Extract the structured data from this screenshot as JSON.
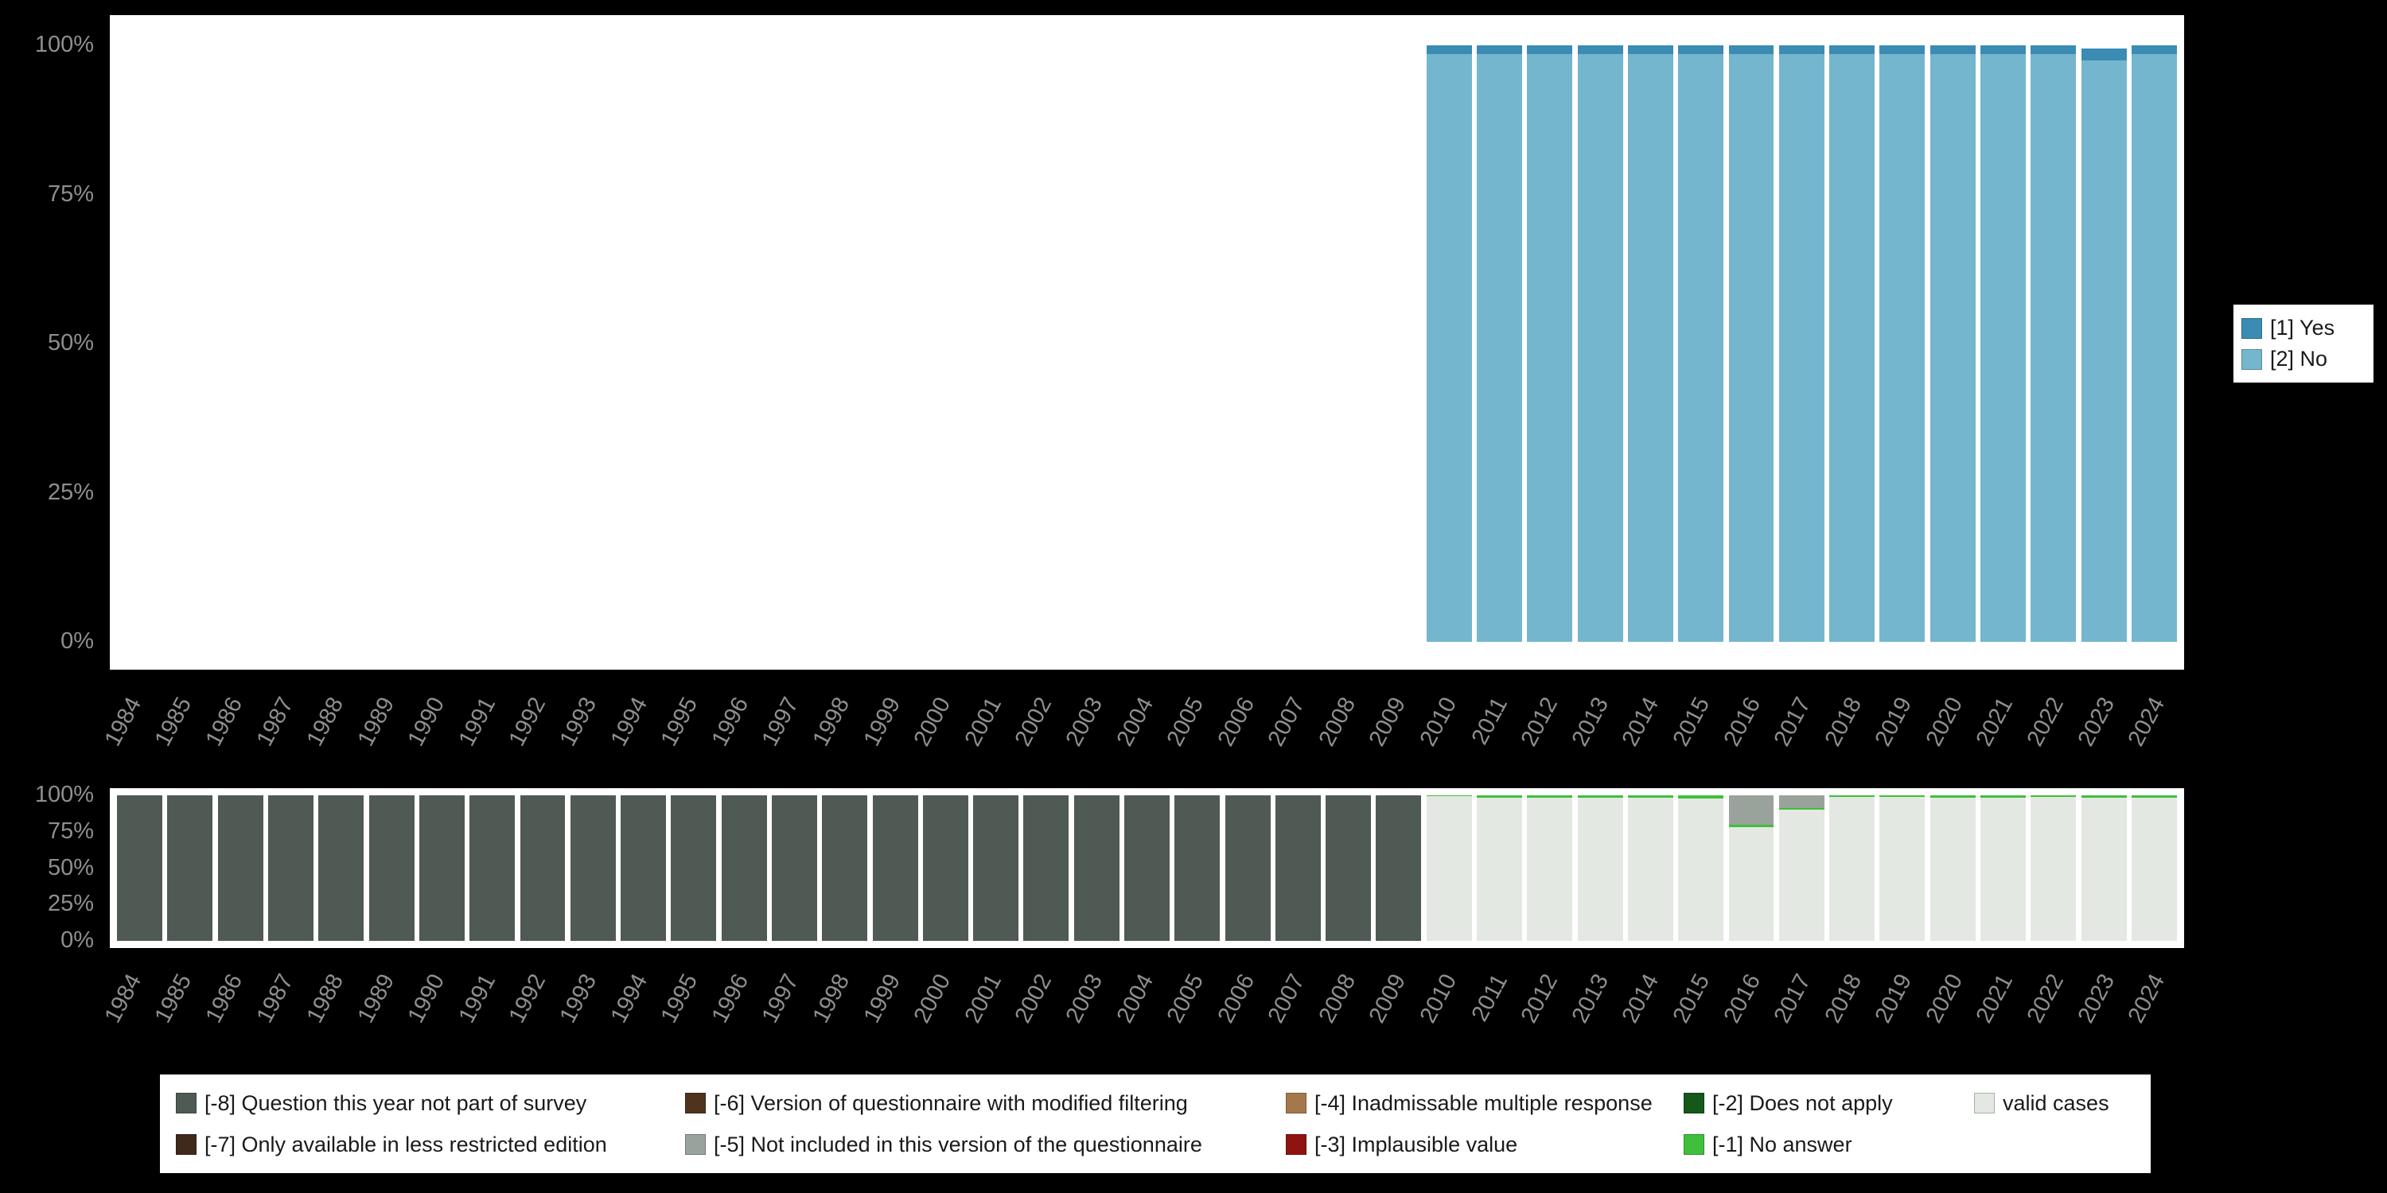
{
  "axis": {
    "years": [
      1984,
      1985,
      1986,
      1987,
      1988,
      1989,
      1990,
      1991,
      1992,
      1993,
      1994,
      1995,
      1996,
      1997,
      1998,
      1999,
      2000,
      2001,
      2002,
      2003,
      2004,
      2005,
      2006,
      2007,
      2008,
      2009,
      2010,
      2011,
      2012,
      2013,
      2014,
      2015,
      2016,
      2017,
      2018,
      2019,
      2020,
      2021,
      2022,
      2023,
      2024
    ],
    "y_ticks": [
      "100%",
      "75%",
      "50%",
      "25%",
      "0%"
    ]
  },
  "colors": {
    "background": "#000000",
    "panel": "#ffffff",
    "axis_text": "#8f8f8f",
    "yes": "#3a8cb4",
    "no": "#74b6cd",
    "not_part_of_survey": "#505a54",
    "less_restricted": "#40291a",
    "modified_filtering": "#4f331d",
    "not_in_version": "#9aa29c",
    "inadmissable": "#a5784b",
    "implausible": "#8e1410",
    "does_not_apply": "#14581a",
    "no_answer": "#3fbf3a",
    "valid_cases": "#e3e8e2"
  },
  "side_legend": {
    "items": [
      {
        "label": "[1] Yes",
        "color": "#3a8cb4"
      },
      {
        "label": "[2] No",
        "color": "#74b6cd"
      }
    ]
  },
  "bottom_legend": {
    "items": [
      {
        "label": "[-8] Question this year not part of survey",
        "color": "#505a54"
      },
      {
        "label": "[-6] Version of questionnaire with modified filtering",
        "color": "#4f331d"
      },
      {
        "label": "[-4] Inadmissable multiple response",
        "color": "#a5784b"
      },
      {
        "label": "[-2] Does not apply",
        "color": "#14581a"
      },
      {
        "label": "valid cases",
        "color": "#e3e8e2"
      },
      {
        "label": "[-7] Only available in less restricted edition",
        "color": "#40291a"
      },
      {
        "label": "[-5] Not included in this version of the questionnaire",
        "color": "#9aa29c"
      },
      {
        "label": "[-3] Implausible value",
        "color": "#8e1410"
      },
      {
        "label": "[-1] No answer",
        "color": "#3fbf3a"
      }
    ]
  },
  "chart_data": [
    {
      "type": "bar",
      "stacked": true,
      "unit": "percent",
      "title": "",
      "ylim": [
        0,
        100
      ],
      "grid": false,
      "legend_position": "right",
      "categories": [
        1984,
        1985,
        1986,
        1987,
        1988,
        1989,
        1990,
        1991,
        1992,
        1993,
        1994,
        1995,
        1996,
        1997,
        1998,
        1999,
        2000,
        2001,
        2002,
        2003,
        2004,
        2005,
        2006,
        2007,
        2008,
        2009,
        2010,
        2011,
        2012,
        2013,
        2014,
        2015,
        2016,
        2017,
        2018,
        2019,
        2020,
        2021,
        2022,
        2023,
        2024
      ],
      "note": "Yes/No distribution, data only available 2010-2024; stacked bottom-to-top: No then Yes",
      "series": [
        {
          "name": "[2] No",
          "color": "#74b6cd",
          "values": [
            0,
            0,
            0,
            0,
            0,
            0,
            0,
            0,
            0,
            0,
            0,
            0,
            0,
            0,
            0,
            0,
            0,
            0,
            0,
            0,
            0,
            0,
            0,
            0,
            0,
            0,
            98.5,
            98.5,
            98.5,
            98.5,
            98.5,
            98.5,
            98.5,
            98.5,
            98.5,
            98.5,
            98.5,
            98.5,
            98.5,
            97.5,
            98.5
          ]
        },
        {
          "name": "[1] Yes",
          "color": "#3a8cb4",
          "values": [
            0,
            0,
            0,
            0,
            0,
            0,
            0,
            0,
            0,
            0,
            0,
            0,
            0,
            0,
            0,
            0,
            0,
            0,
            0,
            0,
            0,
            0,
            0,
            0,
            0,
            0,
            1.5,
            1.5,
            1.5,
            1.5,
            1.5,
            1.5,
            1.5,
            1.5,
            1.5,
            1.5,
            1.5,
            1.5,
            1.5,
            2.0,
            1.5
          ]
        }
      ]
    },
    {
      "type": "bar",
      "stacked": true,
      "unit": "percent",
      "title": "",
      "ylim": [
        0,
        100
      ],
      "grid": false,
      "legend_position": "bottom",
      "categories": [
        1984,
        1985,
        1986,
        1987,
        1988,
        1989,
        1990,
        1991,
        1992,
        1993,
        1994,
        1995,
        1996,
        1997,
        1998,
        1999,
        2000,
        2001,
        2002,
        2003,
        2004,
        2005,
        2006,
        2007,
        2008,
        2009,
        2010,
        2011,
        2012,
        2013,
        2014,
        2015,
        2016,
        2017,
        2018,
        2019,
        2020,
        2021,
        2022,
        2023,
        2024
      ],
      "note": "Missing-value / valid-case shares per year; stacked bottom-to-top as listed",
      "series": [
        {
          "name": "[-8] Question this year not part of survey",
          "color": "#505a54",
          "values": [
            100,
            100,
            100,
            100,
            100,
            100,
            100,
            100,
            100,
            100,
            100,
            100,
            100,
            100,
            100,
            100,
            100,
            100,
            100,
            100,
            100,
            100,
            100,
            100,
            100,
            100,
            0,
            0,
            0,
            0,
            0,
            0,
            0,
            0,
            0,
            0,
            0,
            0,
            0,
            0,
            0
          ]
        },
        {
          "name": "valid cases",
          "color": "#e3e8e2",
          "values": [
            0,
            0,
            0,
            0,
            0,
            0,
            0,
            0,
            0,
            0,
            0,
            0,
            0,
            0,
            0,
            0,
            0,
            0,
            0,
            0,
            0,
            0,
            0,
            0,
            0,
            0,
            99.5,
            98.5,
            98.5,
            98.5,
            98.5,
            98.0,
            78.0,
            90.0,
            99.0,
            99.0,
            98.5,
            98.5,
            99.0,
            98.5,
            98.5
          ]
        },
        {
          "name": "[-1] No answer",
          "color": "#3fbf3a",
          "values": [
            0,
            0,
            0,
            0,
            0,
            0,
            0,
            0,
            0,
            0,
            0,
            0,
            0,
            0,
            0,
            0,
            0,
            0,
            0,
            0,
            0,
            0,
            0,
            0,
            0,
            0,
            0.5,
            1.5,
            1.5,
            1.5,
            1.5,
            2.0,
            2.0,
            1.0,
            1.0,
            1.0,
            1.5,
            1.5,
            1.0,
            1.5,
            1.5
          ]
        },
        {
          "name": "[-5] Not included in this version of the questionnaire",
          "color": "#9aa29c",
          "values": [
            0,
            0,
            0,
            0,
            0,
            0,
            0,
            0,
            0,
            0,
            0,
            0,
            0,
            0,
            0,
            0,
            0,
            0,
            0,
            0,
            0,
            0,
            0,
            0,
            0,
            0,
            0,
            0,
            0,
            0,
            0,
            0,
            20.0,
            9.0,
            0,
            0,
            0,
            0,
            0,
            0,
            0
          ]
        }
      ]
    }
  ]
}
